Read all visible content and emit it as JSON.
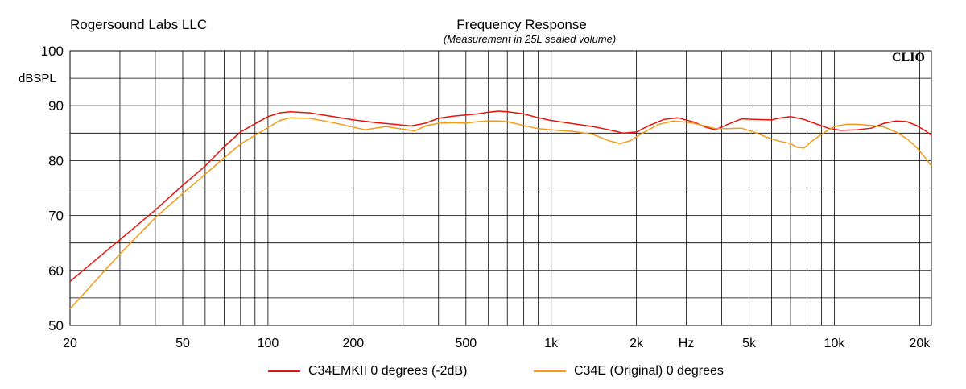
{
  "header": {
    "company": "Rogersound Labs LLC",
    "brand": "CLIO"
  },
  "chart_data": {
    "type": "line",
    "title": "Frequency Response",
    "subtitle": "(Measurement in 25L sealed volume)",
    "ylabel": "dBSPL",
    "xlabel": "Hz",
    "xscale": "log",
    "xlim": [
      20,
      22000
    ],
    "ylim": [
      50,
      100
    ],
    "grid": true,
    "legend_position": "bottom",
    "x_ticks": [
      {
        "value": 20,
        "label": "20"
      },
      {
        "value": 50,
        "label": "50"
      },
      {
        "value": 100,
        "label": "100"
      },
      {
        "value": 200,
        "label": "200"
      },
      {
        "value": 500,
        "label": "500"
      },
      {
        "value": 1000,
        "label": "1k"
      },
      {
        "value": 2000,
        "label": "2k"
      },
      {
        "value": 5000,
        "label": "5k"
      },
      {
        "value": 10000,
        "label": "10k"
      },
      {
        "value": 20000,
        "label": "20k"
      }
    ],
    "x_unit_value": 3000,
    "y_ticks": [
      {
        "value": 100,
        "label": "100"
      },
      {
        "value": 90,
        "label": "90"
      },
      {
        "value": 80,
        "label": "80"
      },
      {
        "value": 70,
        "label": "70"
      },
      {
        "value": 60,
        "label": "60"
      },
      {
        "value": 50,
        "label": "50"
      }
    ],
    "series": [
      {
        "name": "C34EMKII 0 degrees (-2dB)",
        "color": "#e8120a",
        "points": [
          [
            20,
            58
          ],
          [
            25,
            62.2
          ],
          [
            30,
            65.6
          ],
          [
            40,
            71
          ],
          [
            50,
            75.5
          ],
          [
            60,
            79
          ],
          [
            70,
            82.5
          ],
          [
            80,
            85.2
          ],
          [
            90,
            86.7
          ],
          [
            100,
            88
          ],
          [
            110,
            88.7
          ],
          [
            120,
            88.9
          ],
          [
            140,
            88.7
          ],
          [
            170,
            88
          ],
          [
            200,
            87.4
          ],
          [
            240,
            86.9
          ],
          [
            280,
            86.6
          ],
          [
            320,
            86.3
          ],
          [
            360,
            86.8
          ],
          [
            400,
            87.7
          ],
          [
            450,
            88.1
          ],
          [
            500,
            88.3
          ],
          [
            550,
            88.5
          ],
          [
            600,
            88.8
          ],
          [
            650,
            89
          ],
          [
            700,
            88.9
          ],
          [
            800,
            88.5
          ],
          [
            900,
            87.8
          ],
          [
            1000,
            87.3
          ],
          [
            1200,
            86.7
          ],
          [
            1400,
            86.2
          ],
          [
            1600,
            85.6
          ],
          [
            1800,
            85
          ],
          [
            2000,
            85.2
          ],
          [
            2200,
            86.3
          ],
          [
            2500,
            87.5
          ],
          [
            2800,
            87.8
          ],
          [
            3200,
            87
          ],
          [
            3500,
            86.1
          ],
          [
            3800,
            85.6
          ],
          [
            4200,
            86.6
          ],
          [
            4700,
            87.6
          ],
          [
            5200,
            87.5
          ],
          [
            6000,
            87.4
          ],
          [
            6500,
            87.8
          ],
          [
            7000,
            88
          ],
          [
            7800,
            87.5
          ],
          [
            8500,
            86.8
          ],
          [
            9500,
            85.9
          ],
          [
            10500,
            85.5
          ],
          [
            12000,
            85.6
          ],
          [
            13500,
            85.9
          ],
          [
            15000,
            86.8
          ],
          [
            16500,
            87.2
          ],
          [
            18000,
            87.1
          ],
          [
            19500,
            86.4
          ],
          [
            21000,
            85.4
          ],
          [
            22000,
            84.6
          ]
        ]
      },
      {
        "name": "C34E (Original) 0 degrees",
        "color": "#f49a16",
        "points": [
          [
            20,
            53
          ],
          [
            25,
            58.5
          ],
          [
            30,
            63
          ],
          [
            40,
            69.6
          ],
          [
            50,
            74
          ],
          [
            60,
            77.5
          ],
          [
            70,
            80.5
          ],
          [
            80,
            83
          ],
          [
            90,
            84.6
          ],
          [
            100,
            86
          ],
          [
            110,
            87.3
          ],
          [
            120,
            87.8
          ],
          [
            140,
            87.7
          ],
          [
            170,
            86.9
          ],
          [
            200,
            86.1
          ],
          [
            220,
            85.6
          ],
          [
            260,
            86.2
          ],
          [
            300,
            85.7
          ],
          [
            330,
            85.4
          ],
          [
            360,
            86.3
          ],
          [
            400,
            86.8
          ],
          [
            450,
            86.9
          ],
          [
            500,
            86.8
          ],
          [
            550,
            87.1
          ],
          [
            600,
            87.2
          ],
          [
            650,
            87.2
          ],
          [
            700,
            87.1
          ],
          [
            800,
            86.4
          ],
          [
            900,
            85.8
          ],
          [
            1000,
            85.6
          ],
          [
            1200,
            85.3
          ],
          [
            1400,
            84.8
          ],
          [
            1600,
            83.6
          ],
          [
            1750,
            83.1
          ],
          [
            1900,
            83.6
          ],
          [
            2100,
            85
          ],
          [
            2400,
            86.6
          ],
          [
            2700,
            87.2
          ],
          [
            3100,
            86.9
          ],
          [
            3500,
            86.3
          ],
          [
            3800,
            85.8
          ],
          [
            4200,
            85.8
          ],
          [
            4700,
            85.9
          ],
          [
            5200,
            85.2
          ],
          [
            5800,
            84.2
          ],
          [
            6300,
            83.6
          ],
          [
            7000,
            83.1
          ],
          [
            7400,
            82.4
          ],
          [
            7800,
            82.3
          ],
          [
            8400,
            83.7
          ],
          [
            9200,
            85.1
          ],
          [
            10000,
            86.2
          ],
          [
            11000,
            86.6
          ],
          [
            12000,
            86.6
          ],
          [
            13500,
            86.4
          ],
          [
            15000,
            86.1
          ],
          [
            16500,
            85.2
          ],
          [
            18000,
            84
          ],
          [
            19500,
            82.4
          ],
          [
            21000,
            80.4
          ],
          [
            22000,
            79
          ]
        ]
      }
    ]
  }
}
